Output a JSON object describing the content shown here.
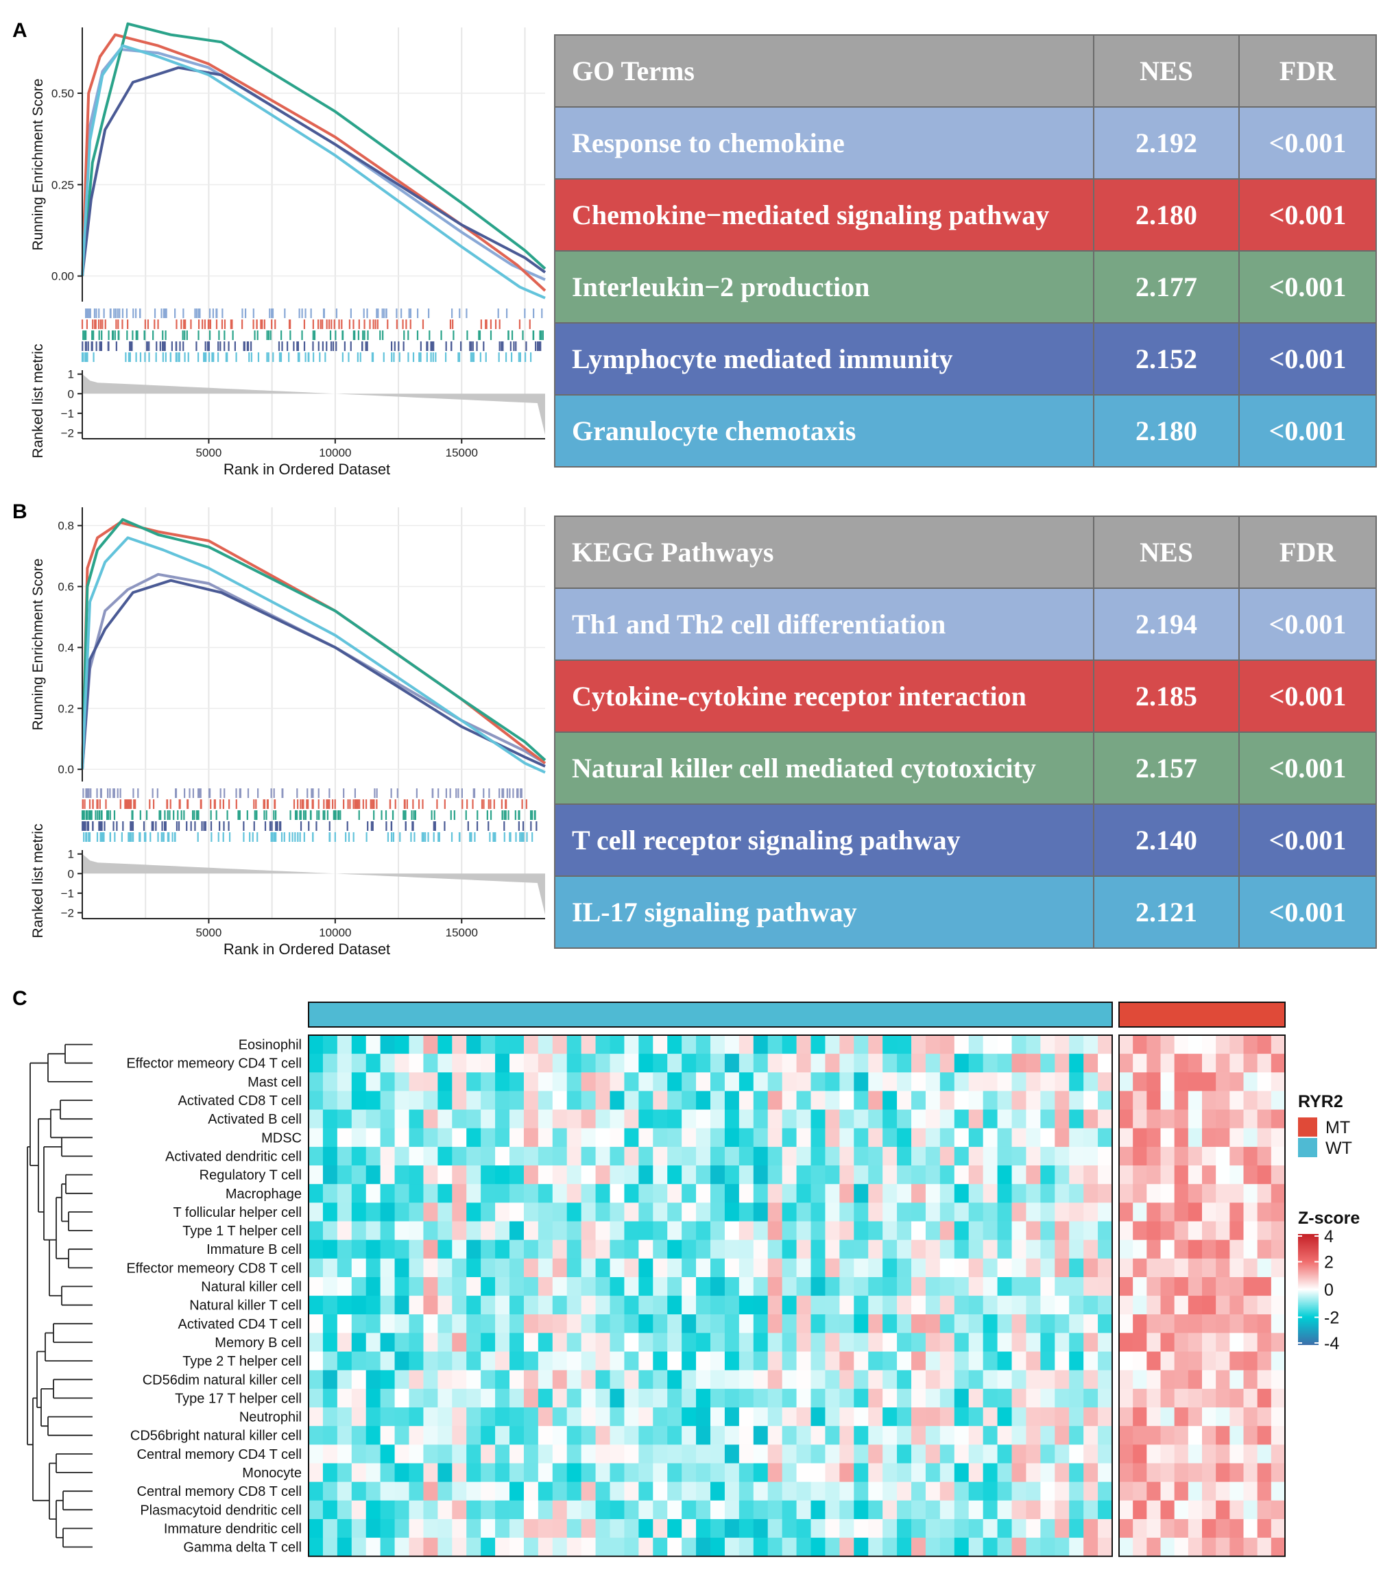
{
  "panels": {
    "a": "A",
    "b": "B",
    "c": "C"
  },
  "gsea_a": {
    "chart_data": {
      "type": "line",
      "ylabel": "Running Enrichment Score",
      "ylabel2": "Ranked list metric",
      "xlabel": "Rank in Ordered Dataset",
      "xlim": [
        0,
        18300
      ],
      "ylim": [
        -0.07,
        0.68
      ],
      "yticks": [
        0.0,
        0.25,
        0.5
      ],
      "ytick_labels": [
        "0.00",
        "0.25",
        "0.50"
      ],
      "xticks": [
        5000,
        10000,
        15000
      ],
      "metric_ylim": [
        -2.3,
        1.2
      ],
      "metric_ticks": [
        1,
        0,
        -1,
        -2
      ],
      "series": [
        {
          "name": "Response to chemokine",
          "color": "#89a8d6",
          "points": [
            [
              0,
              0
            ],
            [
              300,
              0.41
            ],
            [
              800,
              0.56
            ],
            [
              1500,
              0.62
            ],
            [
              3000,
              0.61
            ],
            [
              5000,
              0.57
            ],
            [
              10000,
              0.36
            ],
            [
              15000,
              0.12
            ],
            [
              17000,
              0.03
            ],
            [
              18300,
              -0.01
            ]
          ]
        },
        {
          "name": "Chemokine-mediated signaling pathway",
          "color": "#e06352",
          "points": [
            [
              0,
              0
            ],
            [
              250,
              0.5
            ],
            [
              700,
              0.6
            ],
            [
              1300,
              0.66
            ],
            [
              3000,
              0.63
            ],
            [
              5000,
              0.58
            ],
            [
              10000,
              0.38
            ],
            [
              15000,
              0.14
            ],
            [
              17200,
              0.03
            ],
            [
              18300,
              -0.04
            ]
          ]
        },
        {
          "name": "Interleukin-2 production",
          "color": "#2aa38a",
          "points": [
            [
              0,
              0
            ],
            [
              400,
              0.31
            ],
            [
              900,
              0.45
            ],
            [
              1800,
              0.69
            ],
            [
              3500,
              0.66
            ],
            [
              5500,
              0.64
            ],
            [
              10000,
              0.45
            ],
            [
              15000,
              0.2
            ],
            [
              17500,
              0.07
            ],
            [
              18300,
              0.02
            ]
          ]
        },
        {
          "name": "Lymphocyte mediated immunity",
          "color": "#4a5a95",
          "points": [
            [
              0,
              0
            ],
            [
              350,
              0.21
            ],
            [
              900,
              0.4
            ],
            [
              2000,
              0.53
            ],
            [
              3800,
              0.57
            ],
            [
              5500,
              0.55
            ],
            [
              10000,
              0.36
            ],
            [
              15000,
              0.14
            ],
            [
              17500,
              0.05
            ],
            [
              18300,
              0.01
            ]
          ]
        },
        {
          "name": "Granulocyte chemotaxis",
          "color": "#62c3db",
          "points": [
            [
              0,
              0
            ],
            [
              300,
              0.37
            ],
            [
              800,
              0.55
            ],
            [
              1600,
              0.63
            ],
            [
              3000,
              0.6
            ],
            [
              5000,
              0.55
            ],
            [
              10000,
              0.33
            ],
            [
              15000,
              0.08
            ],
            [
              17300,
              -0.03
            ],
            [
              18300,
              -0.06
            ]
          ]
        }
      ]
    }
  },
  "table_a": {
    "header": [
      "GO Terms",
      "NES",
      "FDR"
    ],
    "rows": [
      {
        "term": "Response to chemokine",
        "nes": "2.192",
        "fdr": "<0.001",
        "color": "#9bb3da"
      },
      {
        "term": "Chemokine−mediated signaling pathway",
        "nes": "2.180",
        "fdr": "<0.001",
        "color": "#d64a4b"
      },
      {
        "term": "Interleukin−2 production",
        "nes": "2.177",
        "fdr": "<0.001",
        "color": "#78a684"
      },
      {
        "term": "Lymphocyte mediated immunity",
        "nes": "2.152",
        "fdr": "<0.001",
        "color": "#5b73b5"
      },
      {
        "term": "Granulocyte chemotaxis",
        "nes": "2.180",
        "fdr": "<0.001",
        "color": "#5baed4"
      }
    ]
  },
  "gsea_b": {
    "chart_data": {
      "type": "line",
      "ylabel": "Running Enrichment Score",
      "ylabel2": "Ranked list metric",
      "xlabel": "Rank in Ordered Dataset",
      "xlim": [
        0,
        18300
      ],
      "ylim": [
        -0.04,
        0.86
      ],
      "yticks": [
        0.0,
        0.2,
        0.4,
        0.6,
        0.8
      ],
      "ytick_labels": [
        "0.0",
        "0.2",
        "0.4",
        "0.6",
        "0.8"
      ],
      "xticks": [
        5000,
        10000,
        15000
      ],
      "metric_ylim": [
        -2.3,
        1.2
      ],
      "metric_ticks": [
        1,
        0,
        -1,
        -2
      ],
      "series": [
        {
          "name": "Th1 and Th2 cell differentiation",
          "color": "#8d96c0",
          "points": [
            [
              0,
              0
            ],
            [
              300,
              0.33
            ],
            [
              900,
              0.52
            ],
            [
              1800,
              0.59
            ],
            [
              3000,
              0.64
            ],
            [
              5000,
              0.61
            ],
            [
              10000,
              0.4
            ],
            [
              15000,
              0.16
            ],
            [
              17500,
              0.06
            ],
            [
              18300,
              0.02
            ]
          ]
        },
        {
          "name": "Cytokine-cytokine receptor interaction",
          "color": "#e06352",
          "points": [
            [
              0,
              0
            ],
            [
              200,
              0.66
            ],
            [
              600,
              0.76
            ],
            [
              1500,
              0.81
            ],
            [
              3000,
              0.78
            ],
            [
              5000,
              0.75
            ],
            [
              10000,
              0.52
            ],
            [
              15000,
              0.23
            ],
            [
              17500,
              0.07
            ],
            [
              18300,
              0.02
            ]
          ]
        },
        {
          "name": "Natural killer cell mediated cytotoxicity",
          "color": "#2aa38a",
          "points": [
            [
              0,
              0
            ],
            [
              200,
              0.6
            ],
            [
              600,
              0.72
            ],
            [
              1600,
              0.82
            ],
            [
              3000,
              0.77
            ],
            [
              5000,
              0.73
            ],
            [
              10000,
              0.52
            ],
            [
              15000,
              0.23
            ],
            [
              17500,
              0.09
            ],
            [
              18300,
              0.03
            ]
          ]
        },
        {
          "name": "T cell receptor signaling pathway",
          "color": "#4a5a95",
          "points": [
            [
              0,
              0
            ],
            [
              300,
              0.36
            ],
            [
              900,
              0.46
            ],
            [
              2000,
              0.58
            ],
            [
              3500,
              0.62
            ],
            [
              5500,
              0.58
            ],
            [
              10000,
              0.4
            ],
            [
              15000,
              0.14
            ],
            [
              17500,
              0.04
            ],
            [
              18300,
              0.01
            ]
          ]
        },
        {
          "name": "IL-17 signaling pathway",
          "color": "#62c3db",
          "points": [
            [
              0,
              0
            ],
            [
              300,
              0.55
            ],
            [
              900,
              0.68
            ],
            [
              1800,
              0.76
            ],
            [
              3200,
              0.72
            ],
            [
              5000,
              0.66
            ],
            [
              10000,
              0.44
            ],
            [
              15000,
              0.16
            ],
            [
              17500,
              0.02
            ],
            [
              18300,
              -0.01
            ]
          ]
        }
      ]
    }
  },
  "table_b": {
    "header": [
      "KEGG Pathways",
      "NES",
      "FDR"
    ],
    "rows": [
      {
        "term": "Th1 and Th2 cell differentiation",
        "nes": "2.194",
        "fdr": "<0.001",
        "color": "#9bb3da"
      },
      {
        "term": "Cytokine-cytokine receptor interaction",
        "nes": "2.185",
        "fdr": "<0.001",
        "color": "#d64a4b"
      },
      {
        "term": "Natural killer cell mediated cytotoxicity",
        "nes": "2.157",
        "fdr": "<0.001",
        "color": "#78a684"
      },
      {
        "term": "T cell receptor signaling pathway",
        "nes": "2.140",
        "fdr": "<0.001",
        "color": "#5b73b5"
      },
      {
        "term": "IL-17 signaling pathway",
        "nes": "2.121",
        "fdr": "<0.001",
        "color": "#5baed4"
      }
    ]
  },
  "heatmap": {
    "chart_data": {
      "type": "heatmap",
      "rows": [
        "Eosinophil",
        "Effector memeory CD4 T cell",
        "Mast cell",
        "Activated CD8 T cell",
        "Activated B cell",
        "MDSC",
        "Activated dendritic cell",
        "Regulatory T cell",
        "Macrophage",
        "T follicular helper cell",
        "Type 1 T helper cell",
        "Immature  B cell",
        "Effector memeory CD8 T cell",
        "Natural killer cell",
        "Natural killer T cell",
        "Activated CD4 T cell",
        "Memory B cell",
        "Type 2 T helper cell",
        "CD56dim natural killer cell",
        "Type 17 T helper cell",
        "Neutrophil",
        "CD56bright natural killer cell",
        "Central memory CD4 T cell",
        "Monocyte",
        "Central memory CD8 T cell",
        "Plasmacytoid dendritic cell",
        "Immature dendritic cell",
        "Gamma delta T cell"
      ],
      "groups": [
        {
          "name": "WT",
          "n_samples": 56,
          "color": "#4fbad3"
        },
        {
          "name": "MT",
          "n_samples": 12,
          "color": "#e04a38"
        }
      ],
      "zrange": [
        -4,
        4
      ],
      "note": "cell values are approximate z-scores; WT samples lean negative, MT samples lean positive"
    },
    "legend": {
      "group_title": "RYR2",
      "group_items": [
        {
          "label": "MT",
          "color": "#e04a38"
        },
        {
          "label": "WT",
          "color": "#4fbad3"
        }
      ],
      "scale_title": "Z-score",
      "scale_ticks": [
        "4",
        "2",
        "0",
        "-2",
        "-4"
      ]
    }
  }
}
